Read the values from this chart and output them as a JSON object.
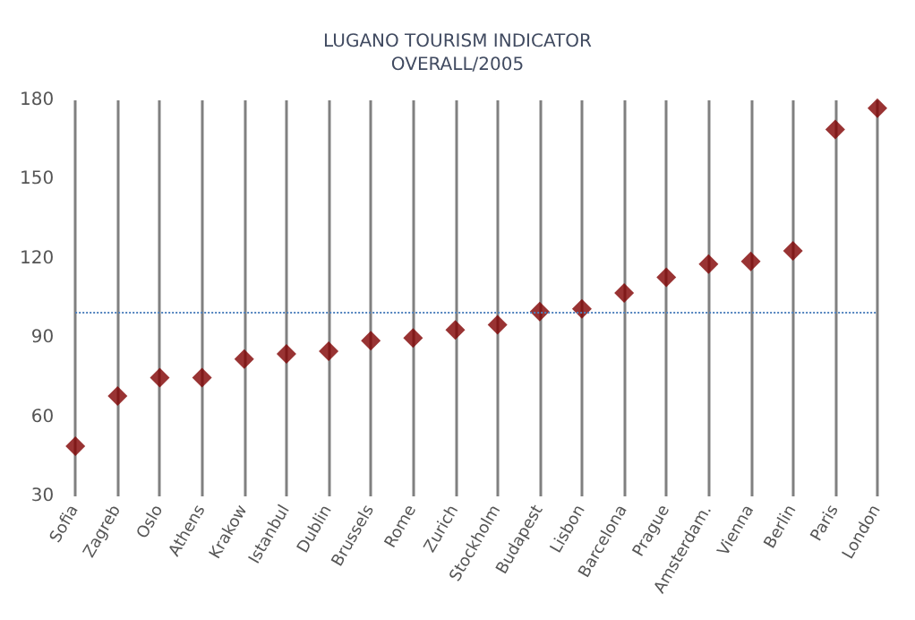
{
  "chart_data": {
    "type": "scatter",
    "title": "LUGANO TOURISM INDICATOR\nOVERALL/2005",
    "categories": [
      "Sofia",
      "Zagreb",
      "Oslo",
      "Athens",
      "Krakow",
      "Istanbul",
      "Dublin",
      "Brussels",
      "Rome",
      "Zurich",
      "Stockholm",
      "Budapest",
      "Lisbon",
      "Barcelona",
      "Prague",
      "Amsterdam.",
      "Vienna",
      "Berlin",
      "Paris",
      "London"
    ],
    "series": [
      {
        "color": "#800000",
        "values": [
          49,
          68,
          75,
          75,
          82,
          84,
          85,
          89,
          90,
          93,
          95,
          100,
          101,
          107,
          113,
          118,
          119,
          123,
          169,
          177
        ]
      }
    ],
    "ylim": [
      30,
      180
    ],
    "yticks": [
      30,
      60,
      90,
      120,
      150,
      180
    ],
    "grid": "x",
    "marker": "diamond",
    "ref_lines": [
      {
        "axis": "y",
        "value": 100,
        "color": "#4f81bd",
        "line_style": "dotted"
      }
    ]
  }
}
